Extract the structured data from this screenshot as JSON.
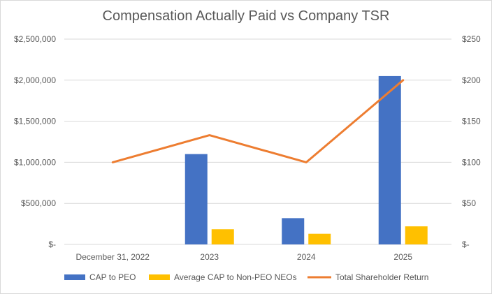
{
  "chart_data": {
    "type": "bar",
    "title": "Compensation Actually Paid vs Company TSR",
    "categories": [
      "December 31, 2022",
      "2023",
      "2024",
      "2025"
    ],
    "series": [
      {
        "name": "CAP to PEO",
        "type": "bar",
        "axis": "left",
        "color": "#4472C4",
        "values": [
          0,
          1100000,
          320000,
          2050000
        ]
      },
      {
        "name": "Average CAP to Non-PEO NEOs",
        "type": "bar",
        "axis": "left",
        "color": "#FFC000",
        "values": [
          0,
          185000,
          130000,
          220000
        ]
      },
      {
        "name": "Total Shareholder Return",
        "type": "line",
        "axis": "right",
        "color": "#ED7D31",
        "values": [
          100,
          133,
          100,
          200
        ]
      }
    ],
    "left_axis": {
      "min": 0,
      "max": 2500000,
      "step": 500000,
      "tick_labels": [
        "$-",
        "$500,000",
        "$1,000,000",
        "$1,500,000",
        "$2,000,000",
        "$2,500,000"
      ]
    },
    "right_axis": {
      "min": 0,
      "max": 250,
      "step": 50,
      "tick_labels": [
        "$-",
        "$50",
        "$100",
        "$150",
        "$200",
        "$250"
      ]
    },
    "grid": "horizontal",
    "legend_position": "bottom"
  }
}
